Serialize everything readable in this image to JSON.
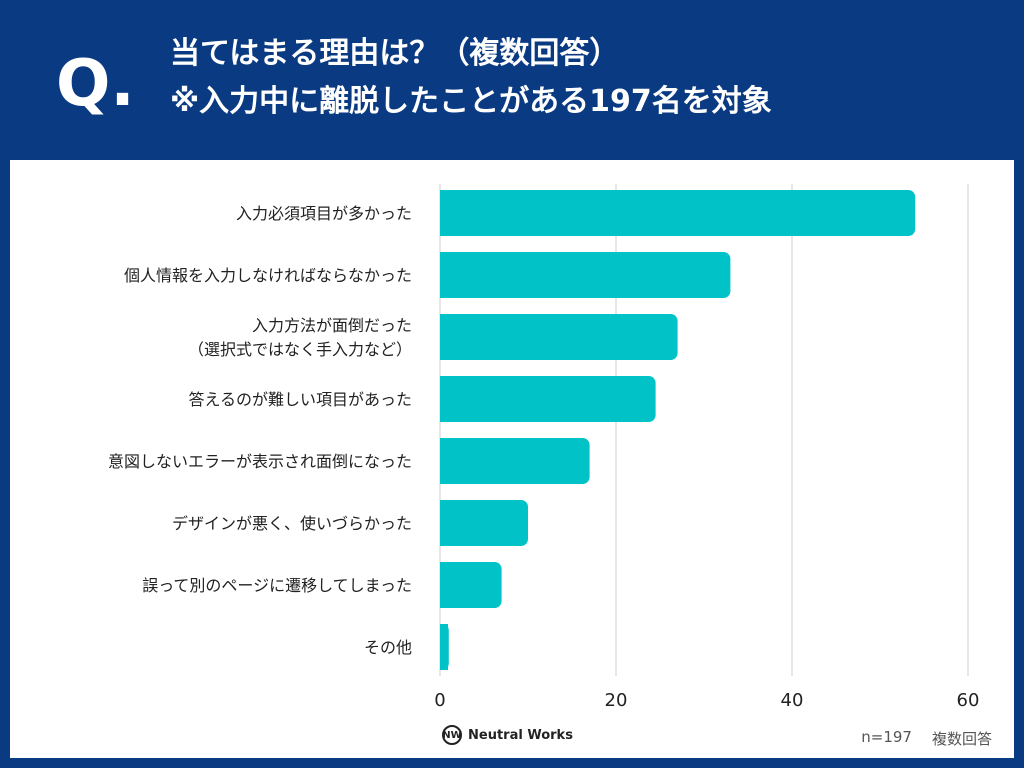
{
  "header": {
    "q_mark": "Q.",
    "title_line1": "当てはまる理由は？（複数回答）",
    "title_line2": "※入力中に離脱したことがある197名を対象"
  },
  "footer": {
    "logo_text": "Neutral Works",
    "logo_mark": "NW",
    "sample_size": "n=197",
    "answer_type": "複数回答"
  },
  "colors": {
    "bar": "#00c2c7",
    "header_bg": "#0a3a82",
    "grid": "#cccccc"
  },
  "chart_data": {
    "type": "bar",
    "orientation": "horizontal",
    "categories": [
      [
        "入力必須項目が多かった"
      ],
      [
        "個人情報を入力しなければならなかった"
      ],
      [
        "入力方法が面倒だった",
        "（選択式ではなく手入力など）"
      ],
      [
        "答えるのが難しい項目があった"
      ],
      [
        "意図しないエラーが表示され面倒になった"
      ],
      [
        "デザインが悪く、使いづらかった"
      ],
      [
        "誤って別のページに遷移してしまった"
      ],
      [
        "その他"
      ]
    ],
    "values": [
      54,
      33,
      27,
      24.5,
      17,
      10,
      7,
      1
    ],
    "xlim": [
      0,
      60
    ],
    "xticks": [
      0,
      20,
      40,
      60
    ],
    "grid": true
  }
}
